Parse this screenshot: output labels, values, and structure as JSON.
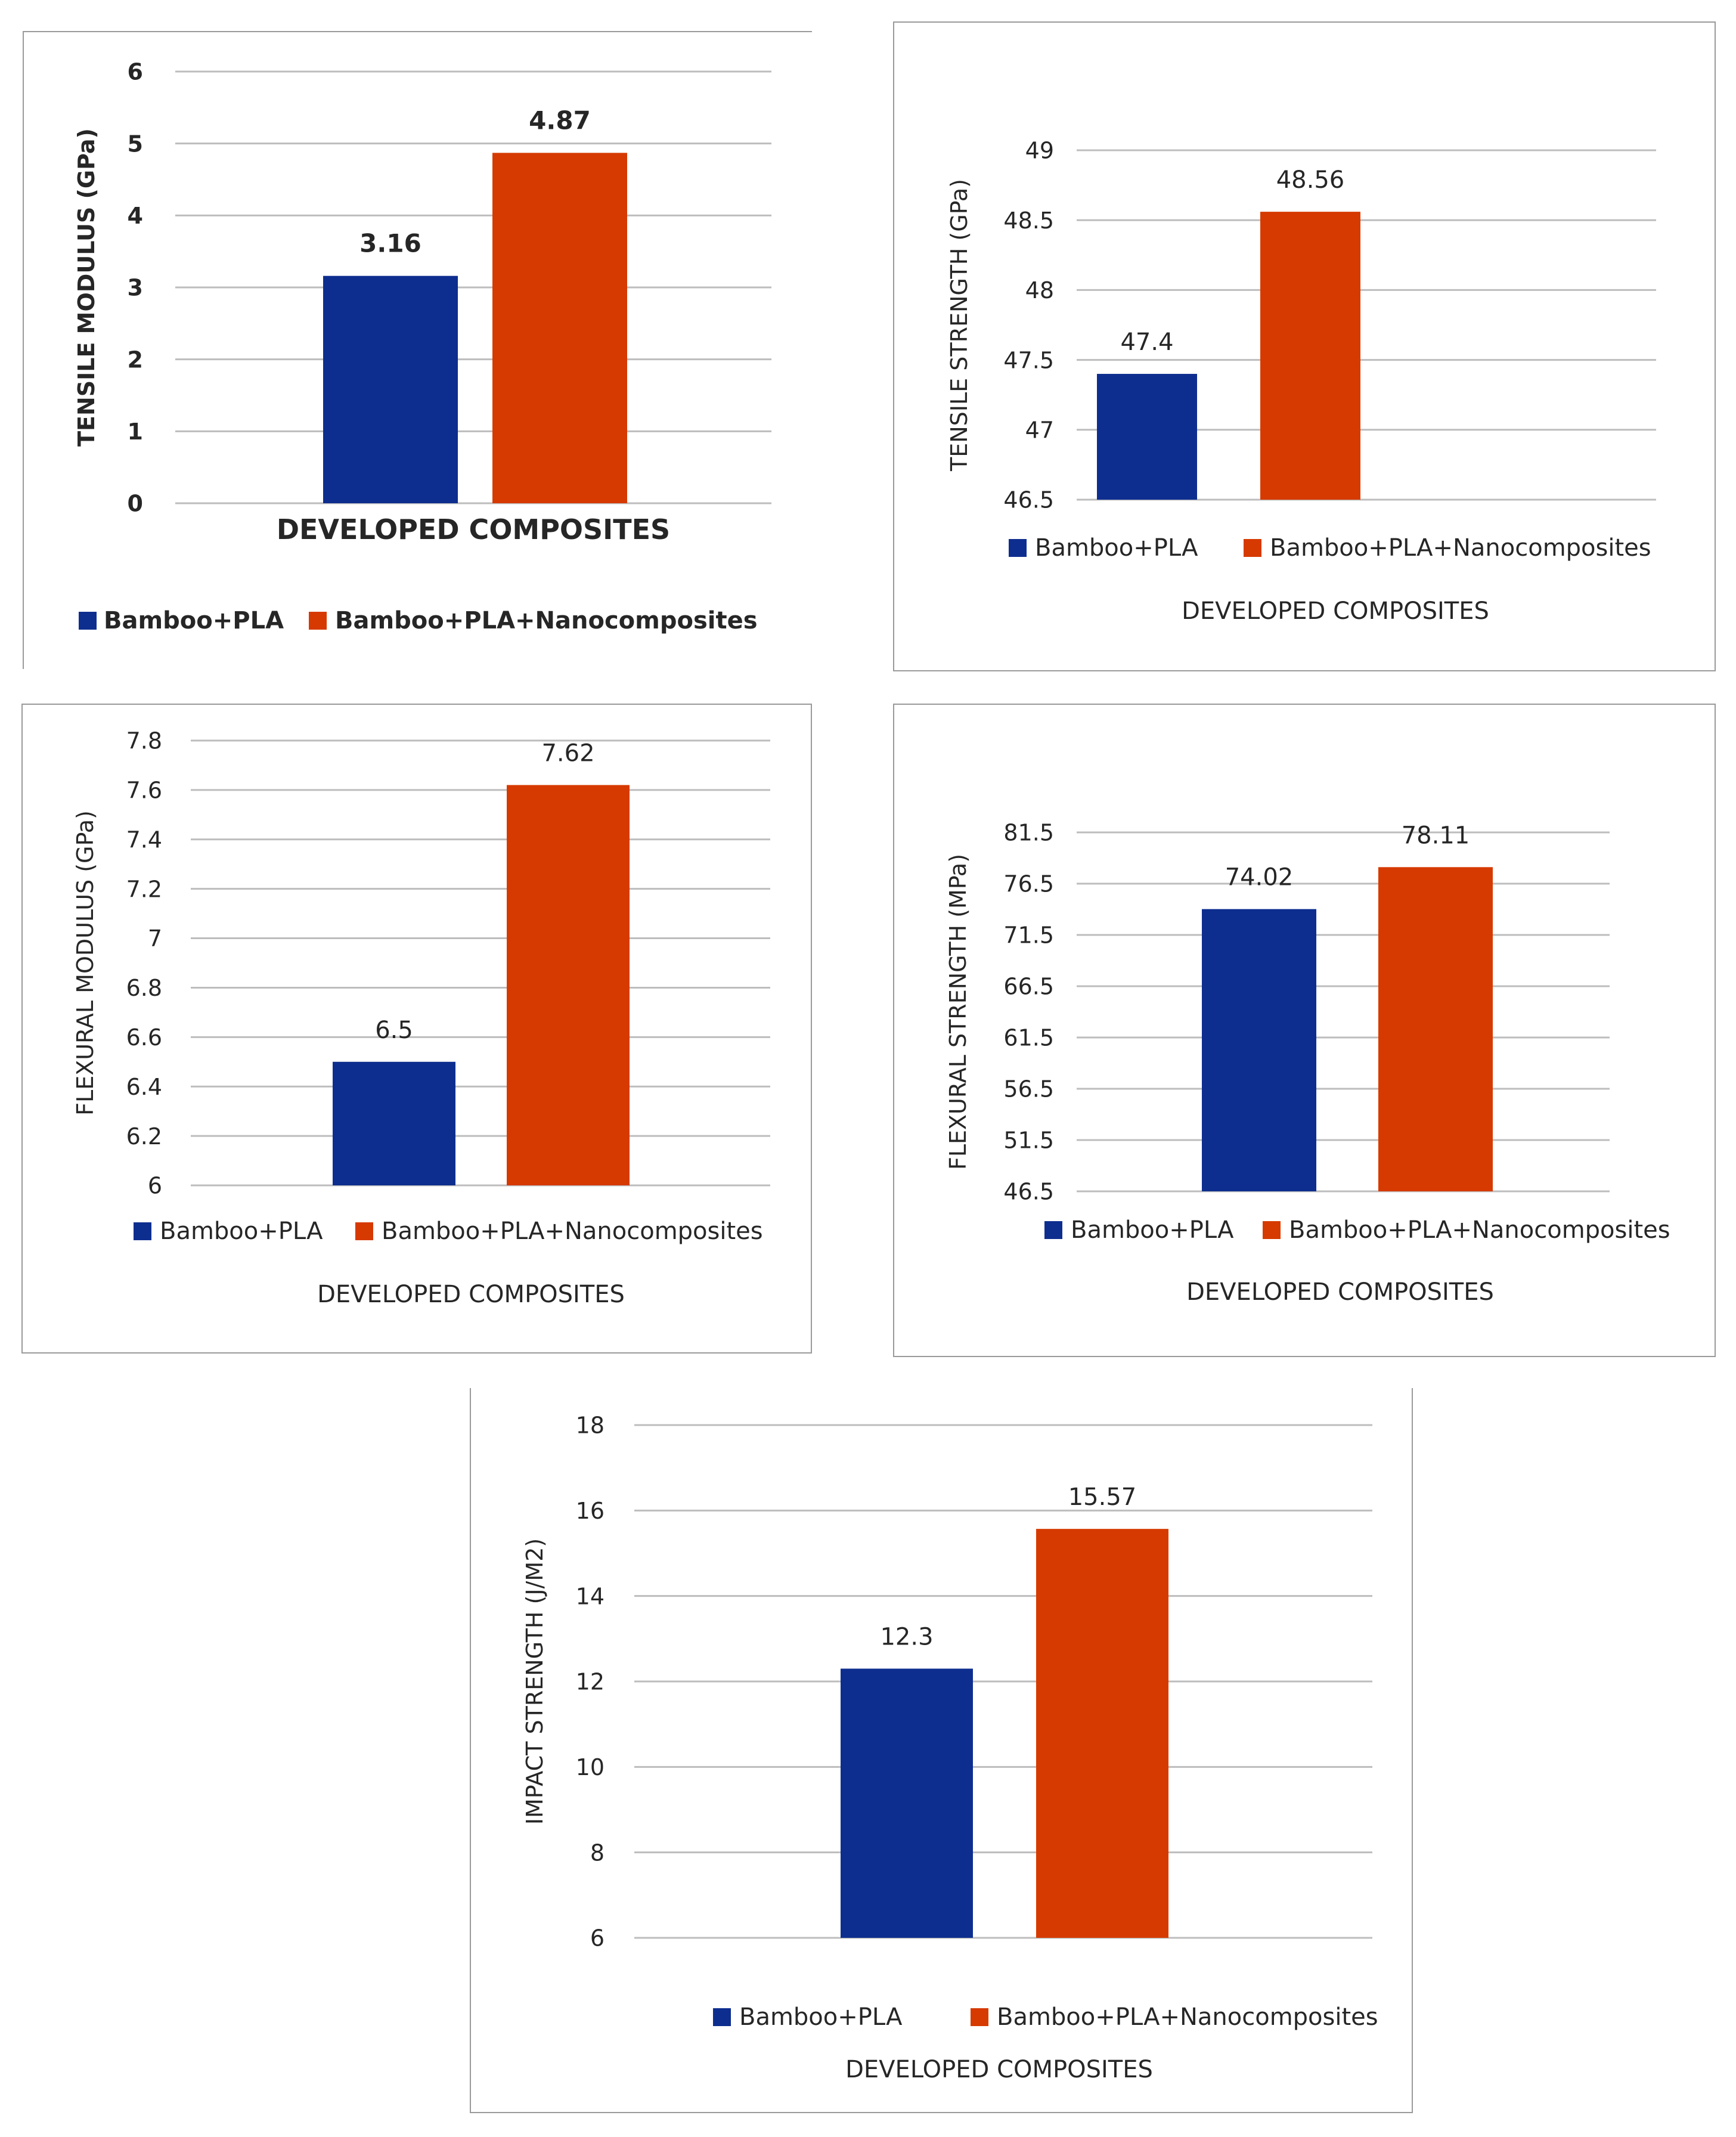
{
  "chart_data": [
    {
      "type": "bar",
      "categories": [
        "DEVELOPED COMPOSITES"
      ],
      "series": [
        {
          "name": "Bamboo+PLA",
          "values": [
            3.16
          ]
        },
        {
          "name": "Bamboo+PLA+Nanocomposites",
          "values": [
            4.87
          ]
        }
      ],
      "value_labels": [
        "3.16",
        "4.87"
      ],
      "title": "",
      "xlabel": "DEVELOPED COMPOSITES",
      "ylabel": "TENSILE MODULUS (GPa)",
      "ylim": [
        0,
        6
      ],
      "yticks": [
        "0",
        "1",
        "2",
        "3",
        "4",
        "5",
        "6"
      ],
      "grid": true,
      "legend": "bottom",
      "colors": [
        "#0e2e8f",
        "#d63a00"
      ]
    },
    {
      "type": "bar",
      "categories": [
        ""
      ],
      "series": [
        {
          "name": "Bamboo+PLA",
          "values": [
            47.4
          ]
        },
        {
          "name": "Bamboo+PLA+Nanocomposites",
          "values": [
            48.56
          ]
        }
      ],
      "value_labels": [
        "47.4",
        "48.56"
      ],
      "title": "",
      "xlabel": "DEVELOPED COMPOSITES",
      "ylabel": "TENSILE STRENGTH (GPa)",
      "ylim": [
        46.5,
        49
      ],
      "yticks": [
        "46.5",
        "47",
        "47.5",
        "48",
        "48.5",
        "49"
      ],
      "grid": true,
      "legend": "bottom",
      "colors": [
        "#0e2e8f",
        "#d63a00"
      ]
    },
    {
      "type": "bar",
      "categories": [
        ""
      ],
      "series": [
        {
          "name": "Bamboo+PLA",
          "values": [
            6.5
          ]
        },
        {
          "name": "Bamboo+PLA+Nanocomposites",
          "values": [
            7.62
          ]
        }
      ],
      "value_labels": [
        "6.5",
        "7.62"
      ],
      "title": "",
      "xlabel": "DEVELOPED COMPOSITES",
      "ylabel": "FLEXURAL MODULUS (GPa)",
      "ylim": [
        6,
        7.8
      ],
      "yticks": [
        "6",
        "6.2",
        "6.4",
        "6.6",
        "6.8",
        "7",
        "7.2",
        "7.4",
        "7.6",
        "7.8"
      ],
      "grid": true,
      "legend": "bottom",
      "colors": [
        "#0e2e8f",
        "#d63a00"
      ]
    },
    {
      "type": "bar",
      "categories": [
        ""
      ],
      "series": [
        {
          "name": "Bamboo+PLA",
          "values": [
            74.02
          ]
        },
        {
          "name": "Bamboo+PLA+Nanocomposites",
          "values": [
            78.11
          ]
        }
      ],
      "value_labels": [
        "74.02",
        "78.11"
      ],
      "title": "",
      "xlabel": "DEVELOPED COMPOSITES",
      "ylabel": "FLEXURAL STRENGTH (MPa)",
      "ylim": [
        46.5,
        81.5
      ],
      "yticks": [
        "46.5",
        "51.5",
        "56.5",
        "61.5",
        "66.5",
        "71.5",
        "76.5",
        "81.5"
      ],
      "grid": true,
      "legend": "bottom",
      "colors": [
        "#0e2e8f",
        "#d63a00"
      ]
    },
    {
      "type": "bar",
      "categories": [
        ""
      ],
      "series": [
        {
          "name": "Bamboo+PLA",
          "values": [
            12.3
          ]
        },
        {
          "name": "Bamboo+PLA+Nanocomposites",
          "values": [
            15.57
          ]
        }
      ],
      "value_labels": [
        "12.3",
        "15.57"
      ],
      "title": "",
      "xlabel": "DEVELOPED COMPOSITES",
      "ylabel": "IMPACT STRENGTH (J/M2)",
      "ylim": [
        6,
        18
      ],
      "yticks": [
        "6",
        "8",
        "10",
        "12",
        "14",
        "16",
        "18"
      ],
      "grid": true,
      "legend": "bottom",
      "colors": [
        "#0e2e8f",
        "#d63a00"
      ]
    }
  ]
}
